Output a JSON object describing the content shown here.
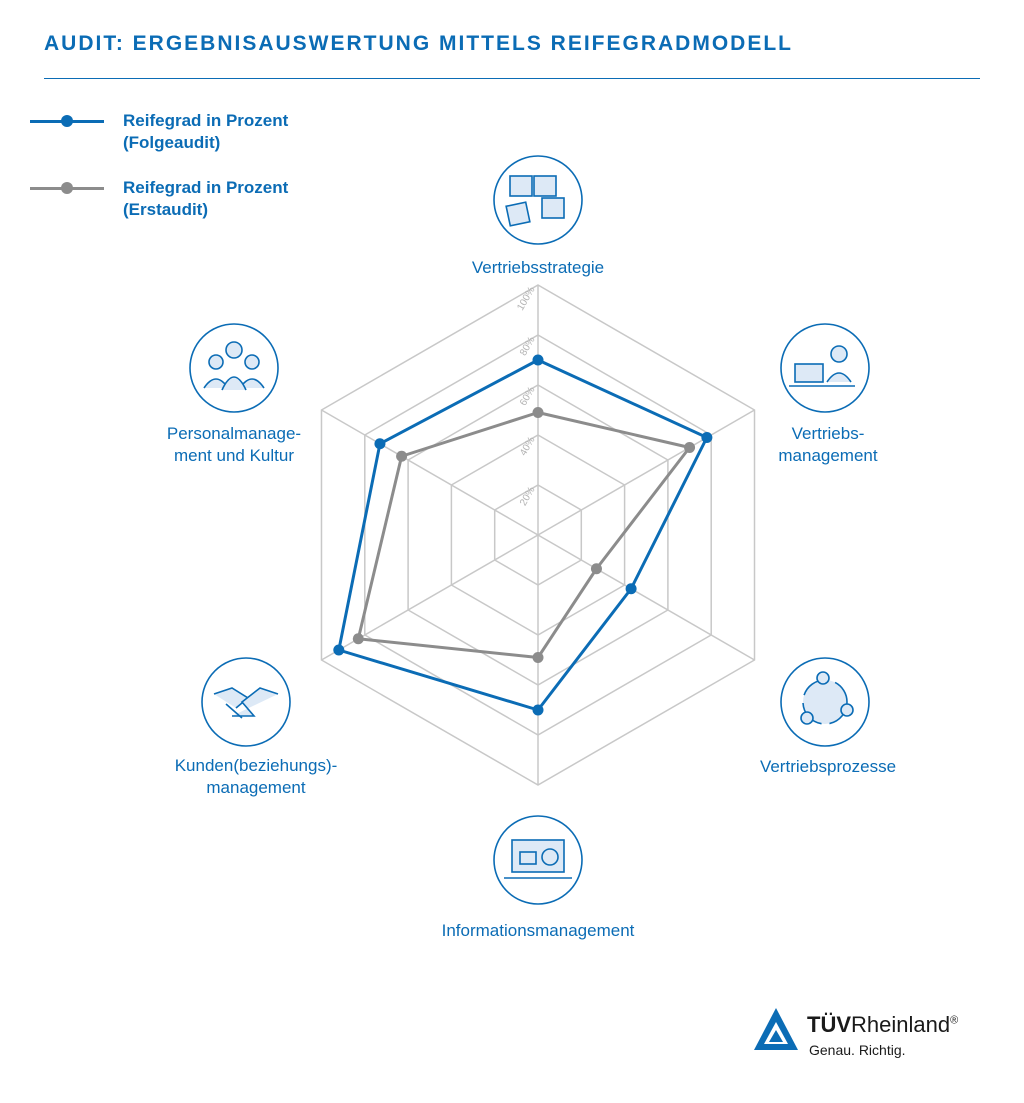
{
  "title": "AUDIT: ERGEBNISAUSWERTUNG MITTELS REIFEGRADMODELL",
  "legend": [
    {
      "line1": "Reifegrad in Prozent",
      "line2": "(Folgeaudit)",
      "color": "#0b6cb5"
    },
    {
      "line1": "Reifegrad in Prozent",
      "line2": "(Erstaudit)",
      "color": "#8c8c8c"
    }
  ],
  "chart_data": {
    "type": "radar",
    "axes": [
      {
        "lines": [
          "Vertriebsstrategie"
        ],
        "icon": "puzzle-icon"
      },
      {
        "lines": [
          "Vertriebs-",
          "management"
        ],
        "icon": "laptop-presenter-icon"
      },
      {
        "lines": [
          "Vertriebsprozesse"
        ],
        "icon": "cycle-icon"
      },
      {
        "lines": [
          "Informationsmanagement"
        ],
        "icon": "dashboard-icon"
      },
      {
        "lines": [
          "Kunden(beziehungs)-",
          "management"
        ],
        "icon": "handshake-icon"
      },
      {
        "lines": [
          "Personalmanage-",
          "ment und Kultur"
        ],
        "icon": "team-icon"
      }
    ],
    "ticks": [
      "20%",
      "40%",
      "60%",
      "80%",
      "100%"
    ],
    "range": [
      0,
      100
    ],
    "series": [
      {
        "name": "Reifegrad in Prozent (Folgeaudit)",
        "color": "#0b6cb5",
        "values": [
          70,
          78,
          43,
          70,
          92,
          73
        ]
      },
      {
        "name": "Reifegrad in Prozent (Erstaudit)",
        "color": "#8c8c8c",
        "values": [
          49,
          70,
          27,
          49,
          83,
          63
        ]
      }
    ]
  },
  "logo": {
    "brand_bold": "TÜV",
    "brand_rest": "Rheinland",
    "registered": "®",
    "slogan": "Genau. Richtig."
  }
}
